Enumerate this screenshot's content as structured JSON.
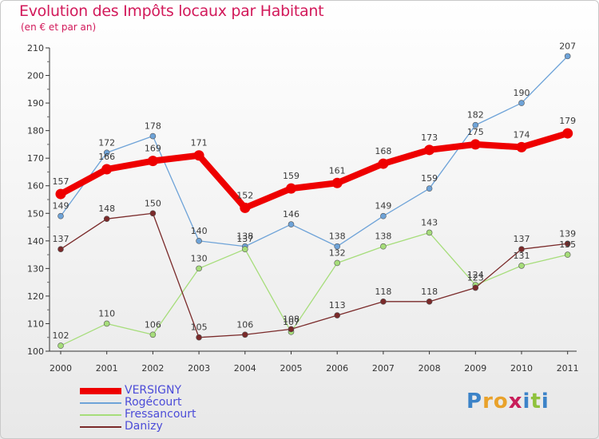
{
  "header": {
    "title": "Evolution des Impôts locaux par Habitant",
    "subtitle": "(en € et par an)"
  },
  "logo": {
    "text": "Proxiti",
    "colors": [
      "#3c83c8",
      "#e9a22b",
      "#e9a22b",
      "#c81e5a",
      "#3c83c8",
      "#8fc23d",
      "#3c83c8"
    ]
  },
  "chart_data": {
    "type": "line",
    "title": "Evolution des Impôts locaux par Habitant",
    "subtitle": "(en € et par an)",
    "xlabel": "",
    "ylabel": "",
    "ylim": [
      100,
      210
    ],
    "yticks": [
      100,
      110,
      120,
      130,
      140,
      150,
      160,
      170,
      180,
      190,
      200,
      210
    ],
    "grid": false,
    "legend_position": "bottom-left",
    "categories": [
      "2000",
      "2001",
      "2002",
      "2003",
      "2004",
      "2005",
      "2006",
      "2007",
      "2008",
      "2009",
      "2010",
      "2011"
    ],
    "series": [
      {
        "name": "VERSIGNY",
        "color": "#ee0000",
        "emphasis": true,
        "values": [
          157,
          166,
          169,
          171,
          152,
          159,
          161,
          168,
          173,
          175,
          174,
          179
        ],
        "labels": [
          "157",
          "166",
          "169",
          "171",
          "152",
          "159",
          "161",
          "168",
          "173",
          "175",
          "174",
          "179"
        ]
      },
      {
        "name": "Rogécourt",
        "color": "#6ea3d8",
        "emphasis": false,
        "values": [
          149,
          172,
          178,
          140,
          138,
          146,
          138,
          149,
          159,
          182,
          190,
          207
        ],
        "labels": [
          "149",
          "172",
          "178",
          "140",
          "138",
          "146",
          "138",
          "149",
          "159",
          "182",
          "190",
          "207"
        ]
      },
      {
        "name": "Fressancourt",
        "color": "#a6dd7a",
        "emphasis": false,
        "values": [
          102,
          110,
          106,
          130,
          137,
          107,
          132,
          138,
          143,
          124,
          131,
          135
        ],
        "labels": [
          "102",
          "110",
          "106",
          "130",
          "137",
          "107",
          "132",
          "138",
          "143",
          "124",
          "131",
          "135"
        ]
      },
      {
        "name": "Danizy",
        "color": "#7a2a2a",
        "emphasis": false,
        "values": [
          137,
          148,
          150,
          105,
          106,
          108,
          113,
          118,
          118,
          123,
          137,
          139
        ],
        "labels": [
          "137",
          "148",
          "150",
          "105",
          "106",
          "108",
          "113",
          "118",
          "118",
          "123",
          "137",
          "139"
        ]
      }
    ]
  }
}
